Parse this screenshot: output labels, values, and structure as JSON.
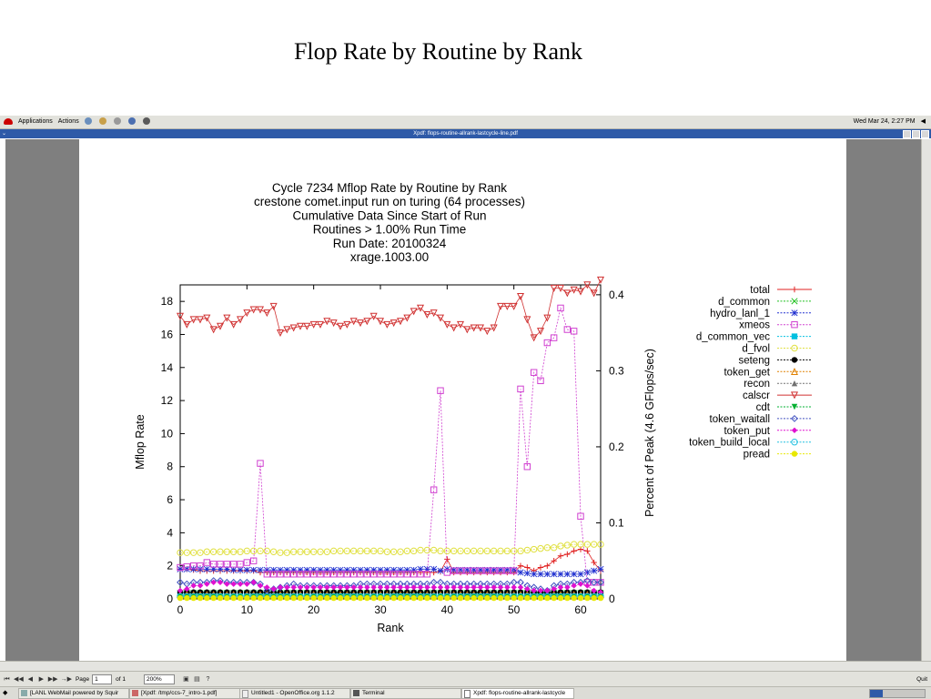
{
  "slide": {
    "title": "Flop Rate by Routine by Rank"
  },
  "desktop": {
    "menu": [
      "Applications",
      "Actions"
    ],
    "clock": "Wed Mar 24,  2:27 PM",
    "window_title": "Xpdf: flops-routine-allrank-lastcycle-line.pdf"
  },
  "toolbar": {
    "page_label": "Page",
    "page_value": "1",
    "of_label": "of 1",
    "zoom": "200%",
    "quit": "Quit"
  },
  "taskbar": [
    "[LANL WebMail powered by Squir",
    "[Xpdf: /tmp/ccs-7_intro-1.pdf]",
    "Untitled1 - OpenOffice.org 1.1.2",
    "Terminal",
    "Xpdf: flops-routine-allrank-lastcycle"
  ],
  "chart_data": {
    "type": "line",
    "title_lines": [
      "Cycle 7234 Mflop Rate by Routine by Rank",
      "crestone comet.input run on turing (64 processes)",
      "Cumulative Data Since Start of Run",
      "Routines > 1.00% Run Time",
      "Run Date: 20100324",
      "xrage.1003.00"
    ],
    "xlabel": "Rank",
    "ylabel": "Mflop Rate",
    "y2label": "Percent of Peak (4.6 GFlops/sec)",
    "xlim": [
      0,
      63
    ],
    "ylim": [
      0,
      19
    ],
    "y2lim": [
      0,
      0.413
    ],
    "xticks": [
      "0",
      "10",
      "20",
      "30",
      "40",
      "50",
      "60"
    ],
    "yticks": [
      "0",
      "2",
      "4",
      "6",
      "8",
      "10",
      "12",
      "14",
      "16",
      "18"
    ],
    "y2ticks": [
      "0",
      "0.1",
      "0.2",
      "0.3",
      "0.4"
    ],
    "legend_position": "right",
    "series": [
      {
        "name": "total",
        "color": "#e02020",
        "marker": "plus",
        "values": [
          1.8,
          1.8,
          1.75,
          1.7,
          1.7,
          1.7,
          1.7,
          1.7,
          1.7,
          1.7,
          1.7,
          1.7,
          1.6,
          1.6,
          1.6,
          1.6,
          1.6,
          1.6,
          1.6,
          1.6,
          1.6,
          1.6,
          1.6,
          1.6,
          1.6,
          1.6,
          1.6,
          1.6,
          1.6,
          1.6,
          1.6,
          1.6,
          1.6,
          1.6,
          1.6,
          1.6,
          1.6,
          1.6,
          1.6,
          1.65,
          2.4,
          1.6,
          1.6,
          1.6,
          1.6,
          1.6,
          1.6,
          1.6,
          1.6,
          1.6,
          1.6,
          2.0,
          1.9,
          1.7,
          1.9,
          2.0,
          2.3,
          2.6,
          2.7,
          2.9,
          3.0,
          2.9,
          2.2,
          1.7
        ]
      },
      {
        "name": "d_common",
        "color": "#20c020",
        "marker": "x",
        "values": [
          0.35,
          0.35,
          0.35,
          0.35,
          0.35,
          0.35,
          0.35,
          0.35,
          0.35,
          0.35,
          0.35,
          0.35,
          0.35,
          0.35,
          0.35,
          0.35,
          0.35,
          0.35,
          0.35,
          0.35,
          0.35,
          0.35,
          0.35,
          0.35,
          0.35,
          0.35,
          0.35,
          0.35,
          0.35,
          0.35,
          0.35,
          0.35,
          0.35,
          0.35,
          0.35,
          0.35,
          0.35,
          0.35,
          0.35,
          0.35,
          0.35,
          0.35,
          0.35,
          0.35,
          0.35,
          0.35,
          0.35,
          0.35,
          0.35,
          0.35,
          0.35,
          0.35,
          0.35,
          0.35,
          0.35,
          0.35,
          0.35,
          0.35,
          0.35,
          0.35,
          0.35,
          0.35,
          0.35,
          0.35
        ]
      },
      {
        "name": "hydro_lanl_1",
        "color": "#2030d0",
        "marker": "star",
        "values": [
          1.8,
          1.8,
          1.8,
          1.8,
          1.8,
          1.8,
          1.8,
          1.8,
          1.75,
          1.75,
          1.75,
          1.75,
          1.75,
          1.75,
          1.75,
          1.75,
          1.75,
          1.75,
          1.75,
          1.75,
          1.75,
          1.75,
          1.75,
          1.75,
          1.75,
          1.75,
          1.75,
          1.75,
          1.75,
          1.75,
          1.75,
          1.75,
          1.75,
          1.75,
          1.75,
          1.75,
          1.8,
          1.8,
          1.8,
          1.7,
          1.8,
          1.75,
          1.75,
          1.75,
          1.75,
          1.75,
          1.75,
          1.75,
          1.75,
          1.75,
          1.75,
          1.6,
          1.55,
          1.5,
          1.5,
          1.5,
          1.5,
          1.5,
          1.5,
          1.5,
          1.5,
          1.6,
          1.7,
          1.8
        ]
      },
      {
        "name": "xmeos",
        "color": "#d040d0",
        "marker": "square",
        "values": [
          1.9,
          1.95,
          2.0,
          2.0,
          2.2,
          2.1,
          2.1,
          2.1,
          2.1,
          2.1,
          2.2,
          2.3,
          8.2,
          1.5,
          1.5,
          1.5,
          1.5,
          1.5,
          1.5,
          1.5,
          1.5,
          1.5,
          1.5,
          1.5,
          1.5,
          1.5,
          1.5,
          1.5,
          1.5,
          1.5,
          1.5,
          1.5,
          1.5,
          1.5,
          1.5,
          1.5,
          1.5,
          1.5,
          6.6,
          12.6,
          1.6,
          1.7,
          1.7,
          1.7,
          1.7,
          1.7,
          1.7,
          1.7,
          1.7,
          1.7,
          1.7,
          12.7,
          8.0,
          13.7,
          13.2,
          15.5,
          15.8,
          17.6,
          16.3,
          16.2,
          5.0,
          1.0,
          1.0,
          1.0
        ]
      },
      {
        "name": "d_common_vec",
        "color": "#00c0e0",
        "marker": "fsquare",
        "values": [
          0.3,
          0.3,
          0.3,
          0.3,
          0.3,
          0.3,
          0.3,
          0.3,
          0.3,
          0.3,
          0.3,
          0.3,
          0.3,
          0.3,
          0.3,
          0.3,
          0.3,
          0.3,
          0.3,
          0.3,
          0.3,
          0.3,
          0.3,
          0.3,
          0.3,
          0.3,
          0.3,
          0.3,
          0.3,
          0.3,
          0.3,
          0.3,
          0.3,
          0.3,
          0.3,
          0.3,
          0.3,
          0.3,
          0.3,
          0.3,
          0.3,
          0.3,
          0.3,
          0.3,
          0.3,
          0.3,
          0.3,
          0.3,
          0.3,
          0.3,
          0.3,
          0.3,
          0.3,
          0.3,
          0.3,
          0.3,
          0.3,
          0.3,
          0.3,
          0.3,
          0.3,
          0.3,
          0.3,
          0.3
        ]
      },
      {
        "name": "d_fvol",
        "color": "#e0e040",
        "marker": "circle",
        "values": [
          2.8,
          2.8,
          2.8,
          2.8,
          2.85,
          2.85,
          2.85,
          2.85,
          2.85,
          2.85,
          2.9,
          2.9,
          2.9,
          2.9,
          2.85,
          2.8,
          2.8,
          2.85,
          2.85,
          2.85,
          2.85,
          2.85,
          2.85,
          2.9,
          2.9,
          2.9,
          2.9,
          2.9,
          2.9,
          2.9,
          2.9,
          2.85,
          2.85,
          2.85,
          2.9,
          2.9,
          2.95,
          2.95,
          2.95,
          2.9,
          2.9,
          2.9,
          2.9,
          2.9,
          2.9,
          2.9,
          2.9,
          2.9,
          2.9,
          2.9,
          2.9,
          2.9,
          2.95,
          3.0,
          3.05,
          3.1,
          3.1,
          3.2,
          3.25,
          3.3,
          3.3,
          3.3,
          3.3,
          3.3
        ]
      },
      {
        "name": "seteng",
        "color": "#000000",
        "marker": "fcircle",
        "values": [
          0.4,
          0.4,
          0.4,
          0.4,
          0.4,
          0.4,
          0.4,
          0.4,
          0.4,
          0.4,
          0.4,
          0.4,
          0.4,
          0.4,
          0.4,
          0.4,
          0.4,
          0.4,
          0.4,
          0.4,
          0.4,
          0.4,
          0.4,
          0.4,
          0.4,
          0.4,
          0.4,
          0.4,
          0.4,
          0.4,
          0.4,
          0.4,
          0.4,
          0.4,
          0.4,
          0.4,
          0.4,
          0.4,
          0.4,
          0.4,
          0.4,
          0.4,
          0.4,
          0.4,
          0.4,
          0.4,
          0.4,
          0.4,
          0.4,
          0.4,
          0.4,
          0.4,
          0.4,
          0.4,
          0.4,
          0.4,
          0.4,
          0.4,
          0.4,
          0.4,
          0.4,
          0.4,
          0.4,
          0.4
        ]
      },
      {
        "name": "token_get",
        "color": "#e08000",
        "marker": "triangle",
        "values": [
          0.25,
          0.25,
          0.25,
          0.25,
          0.25,
          0.25,
          0.25,
          0.25,
          0.25,
          0.25,
          0.25,
          0.25,
          0.25,
          0.25,
          0.25,
          0.25,
          0.25,
          0.25,
          0.25,
          0.25,
          0.25,
          0.25,
          0.25,
          0.25,
          0.25,
          0.25,
          0.25,
          0.25,
          0.25,
          0.25,
          0.25,
          0.25,
          0.25,
          0.25,
          0.25,
          0.25,
          0.25,
          0.25,
          0.25,
          0.25,
          0.25,
          0.25,
          0.25,
          0.25,
          0.25,
          0.25,
          0.25,
          0.25,
          0.25,
          0.25,
          0.25,
          0.25,
          0.25,
          0.25,
          0.25,
          0.25,
          0.25,
          0.25,
          0.25,
          0.25,
          0.25,
          0.25,
          0.25,
          0.25
        ]
      },
      {
        "name": "recon",
        "color": "#707070",
        "marker": "ftriangle",
        "values": [
          0.2,
          0.2,
          0.2,
          0.2,
          0.2,
          0.2,
          0.2,
          0.2,
          0.2,
          0.2,
          0.2,
          0.2,
          0.2,
          0.2,
          0.2,
          0.2,
          0.2,
          0.2,
          0.2,
          0.2,
          0.2,
          0.2,
          0.2,
          0.2,
          0.2,
          0.2,
          0.2,
          0.2,
          0.2,
          0.2,
          0.2,
          0.2,
          0.2,
          0.2,
          0.2,
          0.2,
          0.2,
          0.2,
          0.2,
          0.2,
          0.2,
          0.2,
          0.2,
          0.2,
          0.2,
          0.2,
          0.2,
          0.2,
          0.2,
          0.2,
          0.2,
          0.2,
          0.2,
          0.2,
          0.2,
          0.2,
          0.2,
          0.2,
          0.2,
          0.2,
          0.2,
          0.2,
          0.2,
          0.2
        ]
      },
      {
        "name": "calscr",
        "color": "#d03030",
        "marker": "tridown",
        "values": [
          17.1,
          16.6,
          16.9,
          16.9,
          17.0,
          16.3,
          16.5,
          17.0,
          16.6,
          16.9,
          17.3,
          17.5,
          17.5,
          17.3,
          17.7,
          16.1,
          16.3,
          16.4,
          16.5,
          16.5,
          16.6,
          16.6,
          16.8,
          16.7,
          16.5,
          16.6,
          16.8,
          16.7,
          16.8,
          17.1,
          16.8,
          16.6,
          16.7,
          16.8,
          17.0,
          17.4,
          17.6,
          17.2,
          17.3,
          17.0,
          16.6,
          16.4,
          16.6,
          16.3,
          16.4,
          16.4,
          16.2,
          16.4,
          17.7,
          17.7,
          17.7,
          18.3,
          16.9,
          15.8,
          16.2,
          17.0,
          18.8,
          18.8,
          18.5,
          18.7,
          18.6,
          19.0,
          18.5,
          19.3
        ]
      },
      {
        "name": "cdt",
        "color": "#00b030",
        "marker": "ftridown",
        "values": [
          0.1,
          0.1,
          0.1,
          0.1,
          0.1,
          0.1,
          0.1,
          0.1,
          0.1,
          0.1,
          0.1,
          0.1,
          0.1,
          0.1,
          0.1,
          0.1,
          0.1,
          0.1,
          0.1,
          0.1,
          0.1,
          0.1,
          0.1,
          0.1,
          0.1,
          0.1,
          0.1,
          0.1,
          0.1,
          0.1,
          0.1,
          0.1,
          0.1,
          0.1,
          0.1,
          0.1,
          0.1,
          0.1,
          0.1,
          0.1,
          0.1,
          0.1,
          0.1,
          0.1,
          0.1,
          0.1,
          0.1,
          0.1,
          0.1,
          0.1,
          0.1,
          0.1,
          0.1,
          0.1,
          0.1,
          0.1,
          0.1,
          0.1,
          0.1,
          0.1,
          0.1,
          0.1,
          0.1,
          0.1
        ]
      },
      {
        "name": "token_waitall",
        "color": "#4050c0",
        "marker": "diamond",
        "values": [
          1.0,
          0.9,
          1.0,
          1.0,
          1.0,
          1.1,
          1.1,
          1.0,
          1.0,
          1.0,
          1.0,
          1.0,
          0.9,
          0.5,
          0.6,
          0.7,
          0.8,
          0.9,
          0.8,
          0.8,
          0.8,
          0.8,
          0.8,
          0.8,
          0.8,
          0.8,
          0.8,
          0.9,
          0.9,
          0.9,
          0.9,
          0.9,
          0.9,
          0.9,
          0.9,
          0.9,
          0.9,
          0.9,
          1.0,
          1.0,
          0.9,
          0.9,
          0.9,
          0.9,
          0.9,
          0.9,
          0.9,
          0.9,
          0.9,
          0.9,
          1.0,
          1.0,
          0.8,
          0.7,
          0.6,
          0.5,
          0.8,
          0.9,
          0.9,
          1.0,
          1.0,
          1.1,
          1.0,
          1.0
        ]
      },
      {
        "name": "token_put",
        "color": "#e010d0",
        "marker": "fdiamond",
        "values": [
          0.5,
          0.6,
          0.8,
          0.8,
          0.9,
          1.0,
          1.0,
          0.9,
          0.9,
          0.9,
          0.9,
          1.0,
          0.8,
          0.7,
          0.6,
          0.7,
          0.7,
          0.7,
          0.7,
          0.7,
          0.7,
          0.7,
          0.7,
          0.7,
          0.7,
          0.7,
          0.7,
          0.7,
          0.7,
          0.7,
          0.7,
          0.7,
          0.7,
          0.7,
          0.7,
          0.7,
          0.7,
          0.7,
          0.7,
          0.7,
          0.7,
          0.7,
          0.7,
          0.7,
          0.7,
          0.7,
          0.7,
          0.7,
          0.7,
          0.7,
          0.7,
          0.7,
          0.6,
          0.5,
          0.5,
          0.5,
          0.6,
          0.7,
          0.7,
          0.8,
          0.9,
          0.8,
          0.5,
          0.4
        ]
      },
      {
        "name": "token_build_local",
        "color": "#20c0e0",
        "marker": "ocircle",
        "values": [
          0.15,
          0.15,
          0.15,
          0.15,
          0.15,
          0.15,
          0.15,
          0.15,
          0.15,
          0.15,
          0.15,
          0.15,
          0.15,
          0.15,
          0.15,
          0.15,
          0.15,
          0.15,
          0.15,
          0.15,
          0.15,
          0.15,
          0.15,
          0.15,
          0.15,
          0.15,
          0.15,
          0.15,
          0.15,
          0.15,
          0.15,
          0.15,
          0.15,
          0.15,
          0.15,
          0.15,
          0.15,
          0.15,
          0.15,
          0.15,
          0.15,
          0.15,
          0.15,
          0.15,
          0.15,
          0.15,
          0.15,
          0.15,
          0.15,
          0.15,
          0.15,
          0.15,
          0.15,
          0.15,
          0.15,
          0.15,
          0.15,
          0.15,
          0.15,
          0.15,
          0.15,
          0.15,
          0.15,
          0.15
        ]
      },
      {
        "name": "pread",
        "color": "#e8e800",
        "marker": "fcircle",
        "values": [
          0.05,
          0.05,
          0.05,
          0.05,
          0.05,
          0.05,
          0.05,
          0.05,
          0.05,
          0.05,
          0.05,
          0.05,
          0.05,
          0.05,
          0.05,
          0.05,
          0.05,
          0.05,
          0.05,
          0.05,
          0.05,
          0.05,
          0.05,
          0.05,
          0.05,
          0.05,
          0.05,
          0.05,
          0.05,
          0.05,
          0.05,
          0.05,
          0.05,
          0.05,
          0.05,
          0.05,
          0.05,
          0.05,
          0.05,
          0.05,
          0.05,
          0.05,
          0.05,
          0.05,
          0.05,
          0.05,
          0.05,
          0.05,
          0.05,
          0.05,
          0.05,
          0.05,
          0.05,
          0.05,
          0.05,
          0.05,
          0.05,
          0.05,
          0.05,
          0.05,
          0.05,
          0.05,
          0.05,
          0.05
        ]
      }
    ]
  }
}
